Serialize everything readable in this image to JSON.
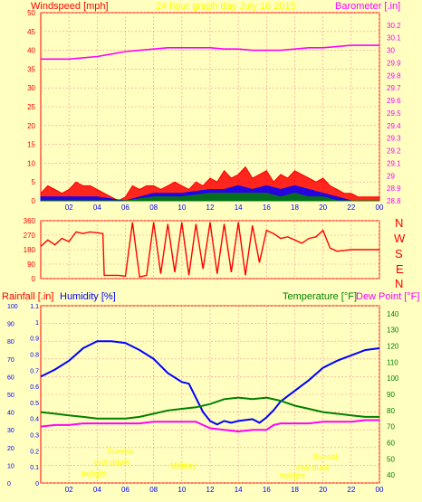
{
  "colors": {
    "background": "#ffffc0",
    "plot_bg": "#ffffc0",
    "grid": "#ff9090",
    "axis_red": "#ff0000",
    "magenta": "#ff00ff",
    "blue": "#0000ff",
    "green": "#008000",
    "yellow": "#ffff00"
  },
  "top_panel": {
    "left_title": "Windspeed [mph]",
    "center_title": "24 hour graph day   July 16 2015",
    "right_title": "Barometer [.in]"
  },
  "compass": [
    "N",
    "W",
    "S",
    "E",
    "N"
  ],
  "bottom_panel": {
    "rain_label": "Rainfall [.in]",
    "humidity_label": "Humidity [%]",
    "temp_label": "Temperature [°F]",
    "dew_label": "Dew Point [°F]"
  },
  "annotations": {
    "sunrise": "Sunrise",
    "civil_dawn": "civil dawn",
    "twilight": "twilight",
    "midnight": "Midnight",
    "noon": "Midday",
    "sunset": "Sunset",
    "civil_dusk": "civil dusk",
    "twilight2": "twilight"
  },
  "chart_data": [
    {
      "type": "area",
      "title": "24 hour graph day   July 16 2015",
      "xlabel": "",
      "ylabel": "Windspeed [mph]",
      "y2label": "Barometer [.in]",
      "xlim": [
        0,
        24
      ],
      "ylim": [
        0,
        50
      ],
      "y2lim": [
        28.8,
        30.3
      ],
      "x_ticks": [
        "02",
        "04",
        "06",
        "08",
        "10",
        "12",
        "14",
        "16",
        "18",
        "20",
        "22",
        "00"
      ],
      "y_ticks": [
        0,
        5,
        10,
        15,
        20,
        25,
        30,
        35,
        40,
        45,
        50
      ],
      "y2_ticks": [
        "28.8",
        "28.9",
        "29",
        "29.1",
        "29.2",
        "29.3",
        "29.4",
        "29.5",
        "29.6",
        "29.7",
        "29.8",
        "29.9",
        "30",
        "30.1",
        "30.2"
      ],
      "series": [
        {
          "name": "Barometer [.in]",
          "axis": "right",
          "color": "#ff00ff",
          "x": [
            0,
            1,
            2,
            3,
            4,
            5,
            6,
            7,
            8,
            9,
            10,
            11,
            12,
            13,
            14,
            15,
            16,
            17,
            18,
            19,
            20,
            21,
            22,
            23,
            24
          ],
          "values": [
            29.93,
            29.93,
            29.93,
            29.94,
            29.95,
            29.97,
            29.99,
            30.0,
            30.01,
            30.02,
            30.02,
            30.02,
            30.02,
            30.01,
            30.01,
            30.0,
            30.0,
            30.0,
            30.01,
            30.02,
            30.02,
            30.03,
            30.04,
            30.04,
            30.04
          ]
        },
        {
          "name": "wind_gust",
          "axis": "left",
          "color": "#ff0000",
          "x": [
            0,
            0.5,
            1,
            1.5,
            2,
            2.5,
            3,
            3.5,
            4,
            4.5,
            5,
            5.5,
            6,
            6.5,
            7,
            7.5,
            8,
            8.5,
            9,
            9.5,
            10,
            10.5,
            11,
            11.5,
            12,
            12.5,
            13,
            13.5,
            14,
            14.5,
            15,
            15.5,
            16,
            16.5,
            17,
            17.5,
            18,
            18.5,
            19,
            19.5,
            20,
            20.5,
            21,
            21.5,
            22,
            22.5,
            23,
            23.5,
            24
          ],
          "values": [
            2,
            4,
            3,
            2,
            3,
            5,
            4,
            4,
            3,
            2,
            1,
            0,
            1,
            4,
            3,
            4,
            4,
            3,
            4,
            5,
            4,
            3,
            5,
            4,
            6,
            5,
            8,
            6,
            7,
            9,
            6,
            7,
            8,
            5,
            7,
            6,
            8,
            7,
            6,
            5,
            6,
            4,
            3,
            2,
            2,
            1,
            1,
            1,
            1
          ]
        },
        {
          "name": "wind_avg_blue",
          "axis": "left",
          "color": "#0000ff",
          "x": [
            0,
            2,
            4,
            6,
            8,
            10,
            12,
            13,
            14,
            15,
            16,
            17,
            18,
            19,
            20,
            21,
            22,
            24
          ],
          "values": [
            1,
            1,
            1,
            0,
            2,
            2,
            3,
            3,
            4,
            3,
            4,
            3,
            4,
            3,
            2,
            1,
            0,
            0
          ]
        },
        {
          "name": "wind_avg_green",
          "axis": "left",
          "color": "#008000",
          "x": [
            0,
            2,
            4,
            6,
            8,
            10,
            12,
            13,
            14,
            15,
            16,
            17,
            18,
            19,
            20,
            21,
            22,
            24
          ],
          "values": [
            0,
            0,
            0,
            0,
            1,
            1,
            2,
            2,
            2,
            2,
            2,
            1,
            2,
            1,
            1,
            0,
            0,
            0
          ]
        }
      ]
    },
    {
      "type": "line",
      "title": "",
      "xlabel": "",
      "ylabel": "",
      "xlim": [
        0,
        24
      ],
      "ylim": [
        0,
        360
      ],
      "x_ticks": [
        "02",
        "04",
        "06",
        "08",
        "10",
        "12",
        "14",
        "16",
        "18",
        "20",
        "22",
        "00"
      ],
      "y_ticks": [
        0,
        90,
        180,
        270,
        360
      ],
      "series": [
        {
          "name": "wind_direction",
          "color": "#ff0000",
          "x": [
            0,
            0.5,
            1,
            1.5,
            2,
            2.5,
            3,
            3.5,
            4,
            4.4,
            4.5,
            5,
            5.5,
            6,
            6.5,
            7,
            7.5,
            8,
            8.5,
            9,
            9.5,
            10,
            10.5,
            11,
            11.5,
            12,
            12.5,
            13,
            13.5,
            14,
            14.5,
            15,
            15.5,
            16,
            16.5,
            17,
            17.5,
            18,
            18.5,
            19,
            19.5,
            20,
            20.5,
            21,
            22,
            23,
            24
          ],
          "values": [
            200,
            240,
            210,
            250,
            230,
            290,
            280,
            290,
            285,
            280,
            20,
            20,
            20,
            15,
            350,
            10,
            20,
            350,
            30,
            340,
            40,
            350,
            20,
            340,
            60,
            350,
            30,
            340,
            40,
            350,
            20,
            330,
            100,
            300,
            280,
            250,
            260,
            240,
            220,
            250,
            260,
            300,
            190,
            170,
            180,
            180,
            180
          ]
        }
      ]
    },
    {
      "type": "line",
      "title": "",
      "xlabel": "",
      "ylabel": "Rainfall [.in]",
      "ylabel2": "Humidity [%]",
      "y2label": "Temperature [°F]",
      "y2label2": "Dew Point [°F]",
      "xlim": [
        0,
        24
      ],
      "ylim_humidity": [
        0,
        100
      ],
      "ylim_rain": [
        0,
        1.1
      ],
      "y2lim": [
        35,
        145
      ],
      "x_ticks": [
        "02",
        "04",
        "06",
        "08",
        "10",
        "12",
        "14",
        "16",
        "18",
        "20",
        "22",
        "00"
      ],
      "humidity_ticks": [
        0,
        10,
        20,
        30,
        40,
        50,
        60,
        70,
        80,
        90,
        100
      ],
      "rain_ticks": [
        "0",
        "0.1",
        "0.2",
        "0.3",
        "0.4",
        "0.5",
        "0.6",
        "0.7",
        "0.8",
        "0.9",
        "1",
        "1.1"
      ],
      "temp_ticks": [
        40,
        50,
        60,
        70,
        80,
        90,
        100,
        110,
        120,
        130,
        140
      ],
      "series": [
        {
          "name": "Humidity [%]",
          "axis": "humidity",
          "color": "#0000ff",
          "x": [
            0,
            1,
            2,
            3,
            4,
            5,
            6,
            7,
            8,
            9,
            10,
            10.5,
            11,
            11.5,
            12,
            12.5,
            13,
            13.5,
            14,
            15,
            15.5,
            16,
            16.5,
            17,
            18,
            19,
            20,
            21,
            22,
            23,
            24
          ],
          "values": [
            60,
            64,
            69,
            76,
            80,
            80,
            79,
            75,
            70,
            62,
            57,
            56,
            48,
            40,
            35,
            33,
            35,
            34,
            35,
            36,
            34,
            37,
            41,
            46,
            52,
            58,
            65,
            69,
            72,
            75,
            76
          ]
        },
        {
          "name": "Temperature [°F]",
          "axis": "temp",
          "color": "#008000",
          "x": [
            0,
            1,
            2,
            3,
            4,
            5,
            6,
            7,
            8,
            9,
            10,
            11,
            12,
            13,
            14,
            15,
            16,
            17,
            18,
            19,
            20,
            21,
            22,
            23,
            24
          ],
          "values": [
            79,
            78,
            77,
            76,
            75,
            75,
            75,
            76,
            78,
            80,
            81,
            82,
            84,
            87,
            88,
            87,
            88,
            86,
            83,
            81,
            79,
            78,
            77,
            76,
            76
          ]
        },
        {
          "name": "Dew Point [°F]",
          "axis": "temp",
          "color": "#ff00ff",
          "x": [
            0,
            1,
            2,
            3,
            4,
            5,
            6,
            7,
            8,
            9,
            10,
            11,
            11.5,
            12,
            13,
            14,
            15,
            16,
            16.5,
            17,
            18,
            19,
            20,
            21,
            22,
            23,
            24
          ],
          "values": [
            70,
            71,
            71,
            72,
            72,
            72,
            72,
            72,
            73,
            73,
            73,
            73,
            71,
            69,
            68,
            67,
            68,
            68,
            71,
            72,
            72,
            72,
            73,
            73,
            73,
            74,
            74
          ]
        }
      ]
    }
  ]
}
